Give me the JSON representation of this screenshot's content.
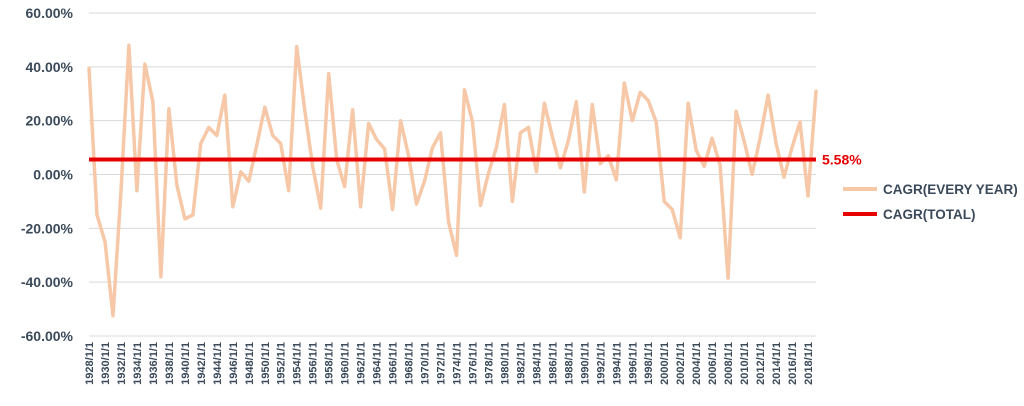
{
  "chart_data": {
    "type": "line",
    "title": "",
    "xlabel": "",
    "ylabel": "",
    "ylim": [
      -60,
      60
    ],
    "y_tick_labels": [
      "60.00%",
      "40.00%",
      "20.00%",
      "0.00%",
      "-20.00%",
      "-40.00%",
      "-60.00%"
    ],
    "y_tick_values": [
      60,
      40,
      20,
      0,
      -20,
      -40,
      -60
    ],
    "grid": "horizontal",
    "legend_position": "right",
    "x": [
      "1928/1/1",
      "1929/1/1",
      "1930/1/1",
      "1931/1/1",
      "1932/1/1",
      "1933/1/1",
      "1934/1/1",
      "1935/1/1",
      "1936/1/1",
      "1937/1/1",
      "1938/1/1",
      "1939/1/1",
      "1940/1/1",
      "1941/1/1",
      "1942/1/1",
      "1943/1/1",
      "1944/1/1",
      "1945/1/1",
      "1946/1/1",
      "1947/1/1",
      "1948/1/1",
      "1949/1/1",
      "1950/1/1",
      "1951/1/1",
      "1952/1/1",
      "1953/1/1",
      "1954/1/1",
      "1955/1/1",
      "1956/1/1",
      "1957/1/1",
      "1958/1/1",
      "1959/1/1",
      "1960/1/1",
      "1961/1/1",
      "1962/1/1",
      "1963/1/1",
      "1964/1/1",
      "1965/1/1",
      "1966/1/1",
      "1967/1/1",
      "1968/1/1",
      "1969/1/1",
      "1970/1/1",
      "1971/1/1",
      "1972/1/1",
      "1973/1/1",
      "1974/1/1",
      "1975/1/1",
      "1976/1/1",
      "1977/1/1",
      "1978/1/1",
      "1979/1/1",
      "1980/1/1",
      "1981/1/1",
      "1982/1/1",
      "1983/1/1",
      "1984/1/1",
      "1985/1/1",
      "1986/1/1",
      "1987/1/1",
      "1988/1/1",
      "1989/1/1",
      "1990/1/1",
      "1991/1/1",
      "1992/1/1",
      "1993/1/1",
      "1994/1/1",
      "1995/1/1",
      "1996/1/1",
      "1997/1/1",
      "1998/1/1",
      "1999/1/1",
      "2000/1/1",
      "2001/1/1",
      "2002/1/1",
      "2003/1/1",
      "2004/1/1",
      "2005/1/1",
      "2006/1/1",
      "2007/1/1",
      "2008/1/1",
      "2009/1/1",
      "2010/1/1",
      "2011/1/1",
      "2012/1/1",
      "2013/1/1",
      "2014/1/1",
      "2015/1/1",
      "2016/1/1",
      "2017/1/1",
      "2018/1/1",
      "2019/1/1"
    ],
    "x_tick_labels": [
      "1928/1/1",
      "1930/1/1",
      "1932/1/1",
      "1934/1/1",
      "1936/1/1",
      "1938/1/1",
      "1940/1/1",
      "1942/1/1",
      "1944/1/1",
      "1946/1/1",
      "1948/1/1",
      "1950/1/1",
      "1952/1/1",
      "1954/1/1",
      "1956/1/1",
      "1958/1/1",
      "1960/1/1",
      "1962/1/1",
      "1964/1/1",
      "1966/1/1",
      "1968/1/1",
      "1970/1/1",
      "1972/1/1",
      "1974/1/1",
      "1976/1/1",
      "1978/1/1",
      "1980/1/1",
      "1982/1/1",
      "1984/1/1",
      "1986/1/1",
      "1988/1/1",
      "1990/1/1",
      "1992/1/1",
      "1994/1/1",
      "1996/1/1",
      "1998/1/1",
      "2000/1/1",
      "2002/1/1",
      "2004/1/1",
      "2006/1/1",
      "2008/1/1",
      "2010/1/1",
      "2012/1/1",
      "2014/1/1",
      "2016/1/1",
      "2018/1/1"
    ],
    "series": [
      {
        "name": "CAGR(EVERY YEAR)",
        "color": "#f6c8a8",
        "values": [
          39.5,
          -15,
          -25,
          -52.5,
          -6,
          48,
          -6,
          41,
          27,
          -38,
          24.5,
          -4,
          -16.5,
          -15,
          11.5,
          17.5,
          14.5,
          29.5,
          -12,
          1,
          -2.5,
          11,
          25,
          14.5,
          11.5,
          -6,
          47.5,
          24,
          3,
          -12.5,
          37.5,
          5.5,
          -4.5,
          24,
          -12,
          19,
          13,
          9.5,
          -13,
          20,
          7,
          -11,
          -2.5,
          10,
          15.5,
          -17.5,
          -30,
          31.5,
          19.5,
          -11.5,
          0.5,
          10,
          26,
          -10,
          15.5,
          17.5,
          1,
          26.5,
          14,
          2.5,
          12.5,
          27,
          -6.5,
          26,
          4,
          7,
          -2,
          34,
          20,
          30.5,
          27.5,
          19.5,
          -10,
          -13,
          -23.5,
          26.5,
          9,
          3,
          13.5,
          3.5,
          -38.5,
          23.5,
          12.5,
          0,
          13.5,
          29.5,
          11.5,
          -1,
          10,
          19.5,
          -8,
          31
        ]
      },
      {
        "name": "CAGR(TOTAL)",
        "color": "#e60000",
        "value": 5.58,
        "label": "5.58%"
      }
    ]
  }
}
